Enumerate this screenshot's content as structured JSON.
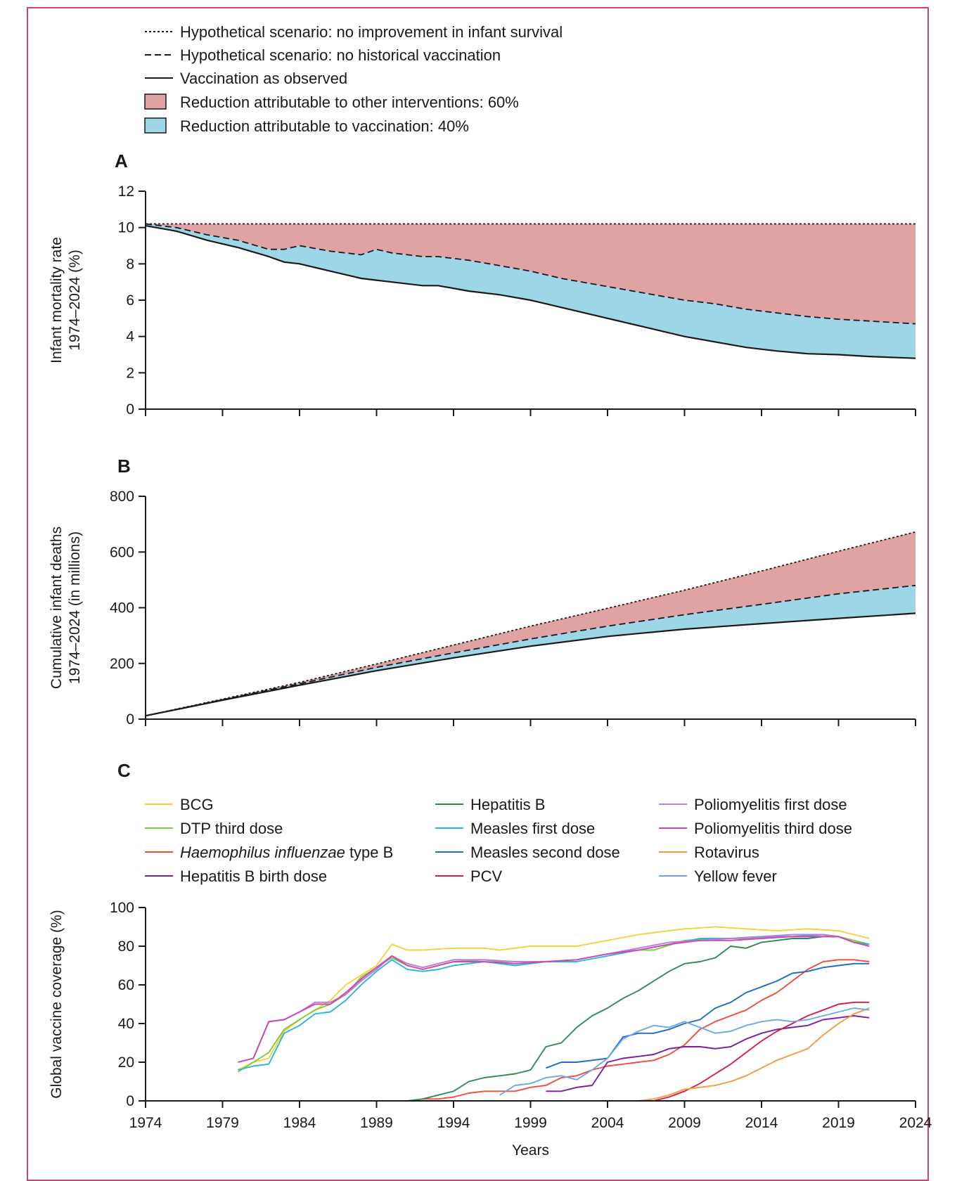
{
  "colors": {
    "frame": "#c8457e",
    "other_fill": "#e0a3a3",
    "vacc_fill": "#9dd6e6",
    "axis": "#1a1a1a"
  },
  "legend_top": {
    "items": [
      {
        "label": "Hypothetical scenario: no improvement in infant survival",
        "style": "dotted"
      },
      {
        "label": "Hypothetical scenario: no historical vaccination",
        "style": "dashed"
      },
      {
        "label": "Vaccination as observed",
        "style": "solid"
      },
      {
        "label": "Reduction attributable to other interventions: 60%",
        "style": "fill-other"
      },
      {
        "label": "Reduction attributable to vaccination: 40%",
        "style": "fill-vacc"
      }
    ]
  },
  "chart_data": [
    {
      "panel": "A",
      "type": "area",
      "ylabel_line1": "Infant mortality rate",
      "ylabel_line2": "1974–2024 (%)",
      "xlim": [
        1974,
        2024
      ],
      "ylim": [
        0,
        12
      ],
      "yticks": [
        "0",
        "2",
        "4",
        "6",
        "8",
        "10",
        "12"
      ],
      "x": [
        1974,
        1976,
        1978,
        1980,
        1982,
        1983,
        1984,
        1986,
        1988,
        1989,
        1990,
        1992,
        1993,
        1995,
        1997,
        1999,
        2001,
        2003,
        2005,
        2007,
        2009,
        2011,
        2013,
        2015,
        2017,
        2019,
        2021,
        2024
      ],
      "series": [
        {
          "name": "Hypothetical scenario: no improvement in infant survival",
          "values": [
            10.2,
            10.2,
            10.2,
            10.2,
            10.2,
            10.2,
            10.2,
            10.2,
            10.2,
            10.2,
            10.2,
            10.2,
            10.2,
            10.2,
            10.2,
            10.2,
            10.2,
            10.2,
            10.2,
            10.2,
            10.2,
            10.2,
            10.2,
            10.2,
            10.2,
            10.2,
            10.2,
            10.2
          ]
        },
        {
          "name": "Hypothetical scenario: no historical vaccination",
          "values": [
            10.2,
            10.0,
            9.6,
            9.3,
            8.8,
            8.8,
            9.0,
            8.7,
            8.5,
            8.8,
            8.6,
            8.4,
            8.4,
            8.2,
            7.9,
            7.6,
            7.2,
            6.9,
            6.6,
            6.3,
            6.0,
            5.8,
            5.5,
            5.3,
            5.1,
            4.95,
            4.85,
            4.7
          ]
        },
        {
          "name": "Vaccination as observed",
          "values": [
            10.1,
            9.8,
            9.3,
            8.9,
            8.4,
            8.1,
            8.0,
            7.6,
            7.2,
            7.1,
            7.0,
            6.8,
            6.8,
            6.5,
            6.3,
            6.0,
            5.6,
            5.2,
            4.8,
            4.4,
            4.0,
            3.7,
            3.4,
            3.2,
            3.05,
            3.0,
            2.9,
            2.8
          ]
        }
      ]
    },
    {
      "panel": "B",
      "type": "area",
      "ylabel_line1": "Cumulative infant deaths",
      "ylabel_line2": "1974–2024 (in millions)",
      "xlim": [
        1974,
        2024
      ],
      "ylim": [
        0,
        800
      ],
      "yticks": [
        "0",
        "200",
        "400",
        "600",
        "800"
      ],
      "x": [
        1974,
        1979,
        1984,
        1989,
        1994,
        1999,
        2004,
        2009,
        2014,
        2019,
        2024
      ],
      "series": [
        {
          "name": "Hypothetical scenario: no improvement in infant survival",
          "values": [
            12,
            72,
            132,
            198,
            266,
            334,
            398,
            463,
            532,
            603,
            672
          ]
        },
        {
          "name": "Hypothetical scenario: no historical vaccination",
          "values": [
            12,
            70,
            127,
            186,
            238,
            288,
            334,
            375,
            412,
            450,
            480
          ]
        },
        {
          "name": "Vaccination as observed",
          "values": [
            12,
            68,
            122,
            174,
            220,
            262,
            297,
            323,
            343,
            362,
            380
          ]
        }
      ]
    },
    {
      "panel": "C",
      "type": "line",
      "ylabel": "Global vaccine coverage (%)",
      "xlabel": "Years",
      "xlim": [
        1974,
        2024
      ],
      "ylim": [
        0,
        100
      ],
      "xticks": [
        "1974",
        "1979",
        "1984",
        "1989",
        "1994",
        "1999",
        "2004",
        "2009",
        "2014",
        "2019",
        "2024"
      ],
      "yticks": [
        "0",
        "20",
        "40",
        "60",
        "80",
        "100"
      ],
      "series": [
        {
          "name": "BCG",
          "color": "#f2d43a",
          "x": [
            1980,
            1981,
            1982,
            1983,
            1984,
            1985,
            1986,
            1987,
            1988,
            1989,
            1990,
            1991,
            1992,
            1994,
            1996,
            1997,
            1999,
            2002,
            2004,
            2006,
            2008,
            2009,
            2011,
            2013,
            2015,
            2017,
            2019,
            2021
          ],
          "values": [
            16,
            20,
            22,
            36,
            42,
            47,
            52,
            60,
            65,
            70,
            81,
            78,
            78,
            79,
            79,
            78,
            80,
            80,
            83,
            86,
            88,
            89,
            90,
            89,
            88,
            89,
            88,
            84
          ]
        },
        {
          "name": "DTP third dose",
          "color": "#7ccc3c",
          "x": [
            1980,
            1981,
            1982,
            1983,
            1984,
            1985,
            1986,
            1987,
            1988,
            1989,
            1990,
            1991,
            1992,
            1994,
            1996,
            1998,
            2000,
            2002,
            2004,
            2006,
            2007,
            2009,
            2011,
            2013,
            2015,
            2017,
            2019,
            2021
          ],
          "values": [
            15,
            20,
            25,
            37,
            42,
            47,
            50,
            55,
            64,
            69,
            74,
            70,
            68,
            72,
            73,
            71,
            72,
            73,
            76,
            78,
            78,
            83,
            84,
            84,
            85,
            85,
            85,
            81
          ]
        },
        {
          "name": "Haemophilus influenzae type B",
          "color": "#f04e3e",
          "x": [
            1992,
            1993,
            1994,
            1995,
            1996,
            1997,
            1998,
            1999,
            2000,
            2001,
            2002,
            2003,
            2004,
            2005,
            2006,
            2007,
            2008,
            2009,
            2010,
            2011,
            2012,
            2013,
            2014,
            2015,
            2016,
            2017,
            2018,
            2019,
            2020,
            2021
          ],
          "values": [
            1,
            1,
            2,
            4,
            5,
            5,
            5,
            7,
            8,
            12,
            13,
            16,
            18,
            19,
            20,
            21,
            24,
            29,
            37,
            41,
            44,
            47,
            52,
            56,
            62,
            68,
            72,
            73,
            73,
            72
          ]
        },
        {
          "name": "Hepatitis B birth dose",
          "color": "#7b1fa2",
          "x": [
            2000,
            2001,
            2002,
            2003,
            2004,
            2005,
            2006,
            2007,
            2008,
            2009,
            2010,
            2011,
            2012,
            2013,
            2014,
            2015,
            2016,
            2017,
            2018,
            2019,
            2020,
            2021
          ],
          "values": [
            5,
            5,
            7,
            8,
            20,
            22,
            23,
            24,
            27,
            28,
            28,
            27,
            28,
            32,
            35,
            37,
            38,
            39,
            42,
            43,
            44,
            43
          ]
        },
        {
          "name": "Hepatitis B",
          "color": "#2e8b57",
          "x": [
            1990,
            1991,
            1992,
            1993,
            1994,
            1995,
            1996,
            1997,
            1998,
            1999,
            2000,
            2001,
            2002,
            2003,
            2004,
            2005,
            2006,
            2007,
            2008,
            2009,
            2010,
            2011,
            2012,
            2013,
            2014,
            2015,
            2016,
            2017,
            2018,
            2019,
            2020,
            2021
          ],
          "values": [
            0,
            0,
            1,
            3,
            5,
            10,
            12,
            13,
            14,
            16,
            28,
            30,
            38,
            44,
            48,
            53,
            57,
            62,
            67,
            71,
            72,
            74,
            80,
            79,
            82,
            83,
            84,
            84,
            85,
            85,
            82,
            81
          ]
        },
        {
          "name": "Measles first dose",
          "color": "#29b6e0",
          "x": [
            1980,
            1981,
            1982,
            1983,
            1984,
            1985,
            1986,
            1987,
            1988,
            1989,
            1990,
            1991,
            1992,
            1993,
            1994,
            1996,
            1998,
            2000,
            2002,
            2004,
            2006,
            2008,
            2010,
            2012,
            2014,
            2016,
            2018,
            2019,
            2020,
            2021
          ],
          "values": [
            16,
            18,
            19,
            35,
            39,
            45,
            46,
            52,
            60,
            67,
            73,
            68,
            67,
            68,
            70,
            72,
            70,
            72,
            72,
            75,
            78,
            81,
            84,
            84,
            85,
            85,
            86,
            85,
            82,
            81
          ]
        },
        {
          "name": "Measles second dose",
          "color": "#1e6cc8",
          "x": [
            2000,
            2001,
            2002,
            2003,
            2004,
            2005,
            2006,
            2007,
            2008,
            2009,
            2010,
            2011,
            2012,
            2013,
            2014,
            2015,
            2016,
            2017,
            2018,
            2019,
            2020,
            2021
          ],
          "values": [
            17,
            20,
            20,
            21,
            22,
            33,
            35,
            35,
            37,
            40,
            42,
            48,
            51,
            56,
            59,
            62,
            66,
            67,
            69,
            70,
            71,
            71
          ]
        },
        {
          "name": "PCV",
          "color": "#d81b4a",
          "x": [
            2000,
            2001,
            2002,
            2003,
            2004,
            2005,
            2006,
            2007,
            2008,
            2009,
            2010,
            2011,
            2012,
            2013,
            2014,
            2015,
            2016,
            2017,
            2018,
            2019,
            2020,
            2021
          ],
          "values": [
            0,
            0,
            0,
            0,
            0,
            0,
            0,
            0,
            2,
            5,
            9,
            14,
            19,
            25,
            31,
            36,
            40,
            44,
            47,
            50,
            51,
            51
          ]
        },
        {
          "name": "Poliomyelitis first dose",
          "color": "#b57edc",
          "x": [
            1980,
            1981,
            1982,
            1983,
            1984,
            1985,
            1986,
            1987,
            1988,
            1989,
            1990,
            1991,
            1992,
            1994,
            1996,
            1998,
            2000,
            2002,
            2004,
            2006,
            2008,
            2010,
            2012,
            2014,
            2016,
            2018,
            2019,
            2020,
            2021
          ],
          "values": [
            20,
            22,
            41,
            42,
            46,
            51,
            51,
            55,
            62,
            68,
            75,
            71,
            69,
            73,
            73,
            72,
            72,
            73,
            76,
            79,
            82,
            83,
            84,
            85,
            86,
            86,
            85,
            82,
            80
          ]
        },
        {
          "name": "Poliomyelitis third dose",
          "color": "#d046b6",
          "x": [
            1980,
            1981,
            1982,
            1983,
            1984,
            1985,
            1986,
            1987,
            1988,
            1989,
            1990,
            1991,
            1992,
            1994,
            1996,
            1998,
            2000,
            2002,
            2004,
            2006,
            2008,
            2010,
            2012,
            2014,
            2016,
            2018,
            2019,
            2020,
            2021
          ],
          "values": [
            20,
            22,
            41,
            42,
            46,
            50,
            50,
            56,
            63,
            69,
            75,
            70,
            68,
            72,
            72,
            71,
            72,
            73,
            76,
            78,
            81,
            83,
            83,
            84,
            85,
            85,
            85,
            82,
            80
          ]
        },
        {
          "name": "Rotavirus",
          "color": "#f39c3b",
          "x": [
            2006,
            2007,
            2008,
            2009,
            2010,
            2011,
            2012,
            2013,
            2014,
            2015,
            2016,
            2017,
            2018,
            2019,
            2020,
            2021
          ],
          "values": [
            0,
            1,
            3,
            6,
            7,
            8,
            10,
            13,
            17,
            21,
            24,
            27,
            34,
            40,
            45,
            48
          ]
        },
        {
          "name": "Yellow fever",
          "color": "#6fa8e8",
          "x": [
            1997,
            1998,
            1999,
            2000,
            2001,
            2002,
            2003,
            2004,
            2005,
            2006,
            2007,
            2008,
            2009,
            2010,
            2011,
            2012,
            2013,
            2014,
            2015,
            2016,
            2017,
            2018,
            2019,
            2020,
            2021
          ],
          "values": [
            3,
            8,
            9,
            12,
            13,
            11,
            16,
            22,
            32,
            36,
            39,
            38,
            41,
            38,
            35,
            36,
            39,
            41,
            42,
            41,
            42,
            44,
            46,
            48,
            47
          ]
        }
      ]
    }
  ],
  "panel_labels": {
    "a": "A",
    "b": "B",
    "c": "C"
  },
  "legend_c": {
    "items": [
      {
        "name": "BCG",
        "color": "#f2d43a",
        "italic": ""
      },
      {
        "name": "DTP third dose",
        "color": "#7ccc3c",
        "italic": ""
      },
      {
        "name": "type B",
        "color": "#f04e3e",
        "italic": "Haemophilus influenzae"
      },
      {
        "name": "Hepatitis B birth dose",
        "color": "#7b1fa2",
        "italic": ""
      },
      {
        "name": "Hepatitis B",
        "color": "#2e8b57",
        "italic": ""
      },
      {
        "name": "Measles first  dose",
        "color": "#29b6e0",
        "italic": ""
      },
      {
        "name": "Measles second dose",
        "color": "#1e6cc8",
        "italic": ""
      },
      {
        "name": "PCV",
        "color": "#d81b4a",
        "italic": ""
      },
      {
        "name": "Poliomyelitis first dose",
        "color": "#b57edc",
        "italic": ""
      },
      {
        "name": "Poliomyelitis third dose",
        "color": "#d046b6",
        "italic": ""
      },
      {
        "name": "Rotavirus",
        "color": "#f39c3b",
        "italic": ""
      },
      {
        "name": "Yellow fever",
        "color": "#6fa8e8",
        "italic": ""
      }
    ]
  }
}
